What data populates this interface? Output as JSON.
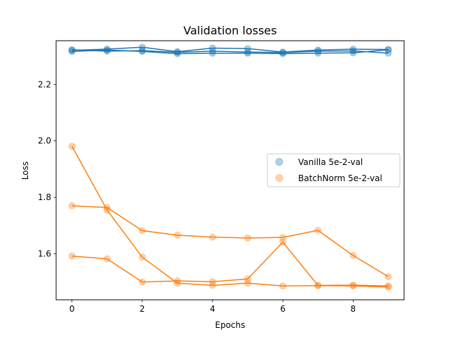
{
  "chart_data": {
    "type": "scatter",
    "title": "Validation losses",
    "xlabel": "Epochs",
    "ylabel": "Loss",
    "xlim": [
      -0.45,
      9.45
    ],
    "ylim": [
      1.437,
      2.355
    ],
    "xticks": [
      0,
      2,
      4,
      6,
      8
    ],
    "yticks": [
      1.6,
      1.8,
      2.0,
      2.2
    ],
    "grid": false,
    "legend_placement": "center-right",
    "x": [
      0,
      1,
      2,
      3,
      4,
      5,
      6,
      7,
      8,
      9
    ],
    "series": [
      {
        "name": "Vanilla 5e-2-val",
        "color": "#1f77b4",
        "runs": [
          [
            2.317,
            2.322,
            2.317,
            2.309,
            2.311,
            2.311,
            2.309,
            2.311,
            2.312,
            2.323
          ],
          [
            2.321,
            2.325,
            2.332,
            2.316,
            2.329,
            2.327,
            2.315,
            2.322,
            2.325,
            2.324
          ],
          [
            2.323,
            2.318,
            2.32,
            2.314,
            2.318,
            2.315,
            2.313,
            2.318,
            2.319,
            2.311
          ]
        ]
      },
      {
        "name": "BatchNorm 5e-2-val",
        "color": "#ff7f0e",
        "runs": [
          [
            1.981,
            1.755,
            1.588,
            1.496,
            1.488,
            1.496,
            1.486,
            1.487,
            1.486,
            1.482
          ],
          [
            1.77,
            1.764,
            1.682,
            1.666,
            1.659,
            1.656,
            1.658,
            1.683,
            1.594,
            1.519
          ],
          [
            1.592,
            1.582,
            1.5,
            1.504,
            1.501,
            1.511,
            1.641,
            1.488,
            1.489,
            1.486
          ]
        ]
      }
    ]
  }
}
